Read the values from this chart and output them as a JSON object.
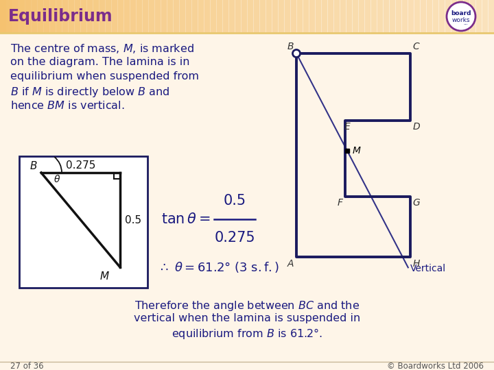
{
  "title": "Equilibrium",
  "title_color": "#7B2D8B",
  "header_bg": "#F5C270",
  "bg_color": "#FEF5E8",
  "body_text_color": "#1a1a80",
  "body_lines": [
    "The centre of mass, $M$, is marked",
    "on the diagram. The lamina is in",
    "equilibrium when suspended from",
    "$B$ if $M$ is directly below $B$ and",
    "hence $BM$ is vertical."
  ],
  "bottom_lines": [
    "Therefore the angle between $BC$ and the",
    "vertical when the lamina is suspended in",
    "equilibrium from $B$ is 61.2°."
  ],
  "footer_left": "27 of 36",
  "footer_right": "© Boardworks Ltd 2006",
  "lamina_color": "#1a1a5e",
  "line_color": "#555577",
  "black": "#111111",
  "label_color": "#333333"
}
